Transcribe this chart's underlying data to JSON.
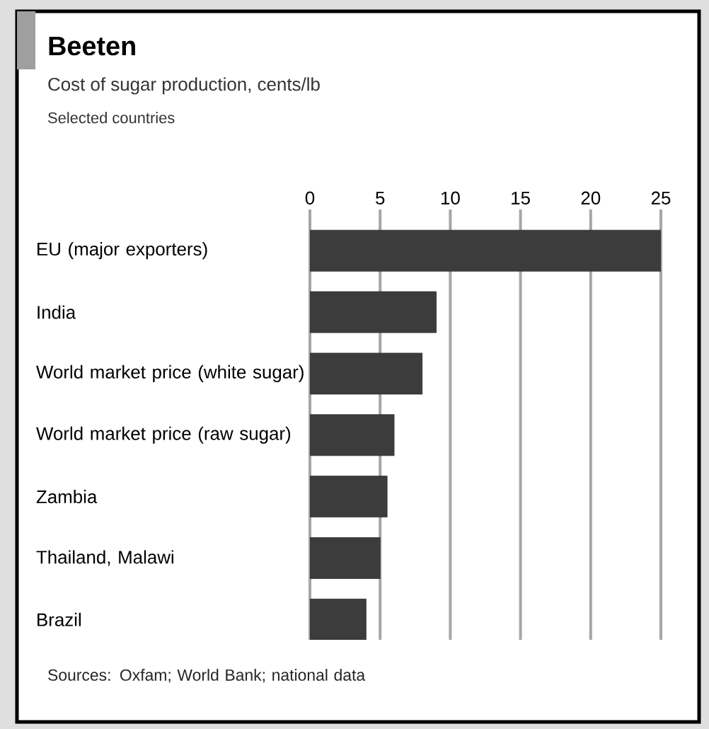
{
  "chart_data": {
    "type": "bar",
    "orientation": "horizontal",
    "title": "Beeten",
    "subtitle": "Cost of sugar production, cents/lb",
    "annotations": [
      "Selected countries",
      "Sources: Oxfam; World Bank; national data"
    ],
    "categories": [
      "EU (major exporters)",
      "India",
      "World market price (white sugar)",
      "World market price (raw sugar)",
      "Zambia",
      "Thailand, Malawi",
      "Brazil"
    ],
    "values": [
      25,
      9,
      8,
      6,
      5.5,
      5,
      4
    ],
    "color": "#3c3c3c",
    "xlim": [
      0,
      25
    ],
    "xticks": [
      0,
      5,
      10,
      15,
      20,
      25
    ],
    "grid": "x"
  }
}
